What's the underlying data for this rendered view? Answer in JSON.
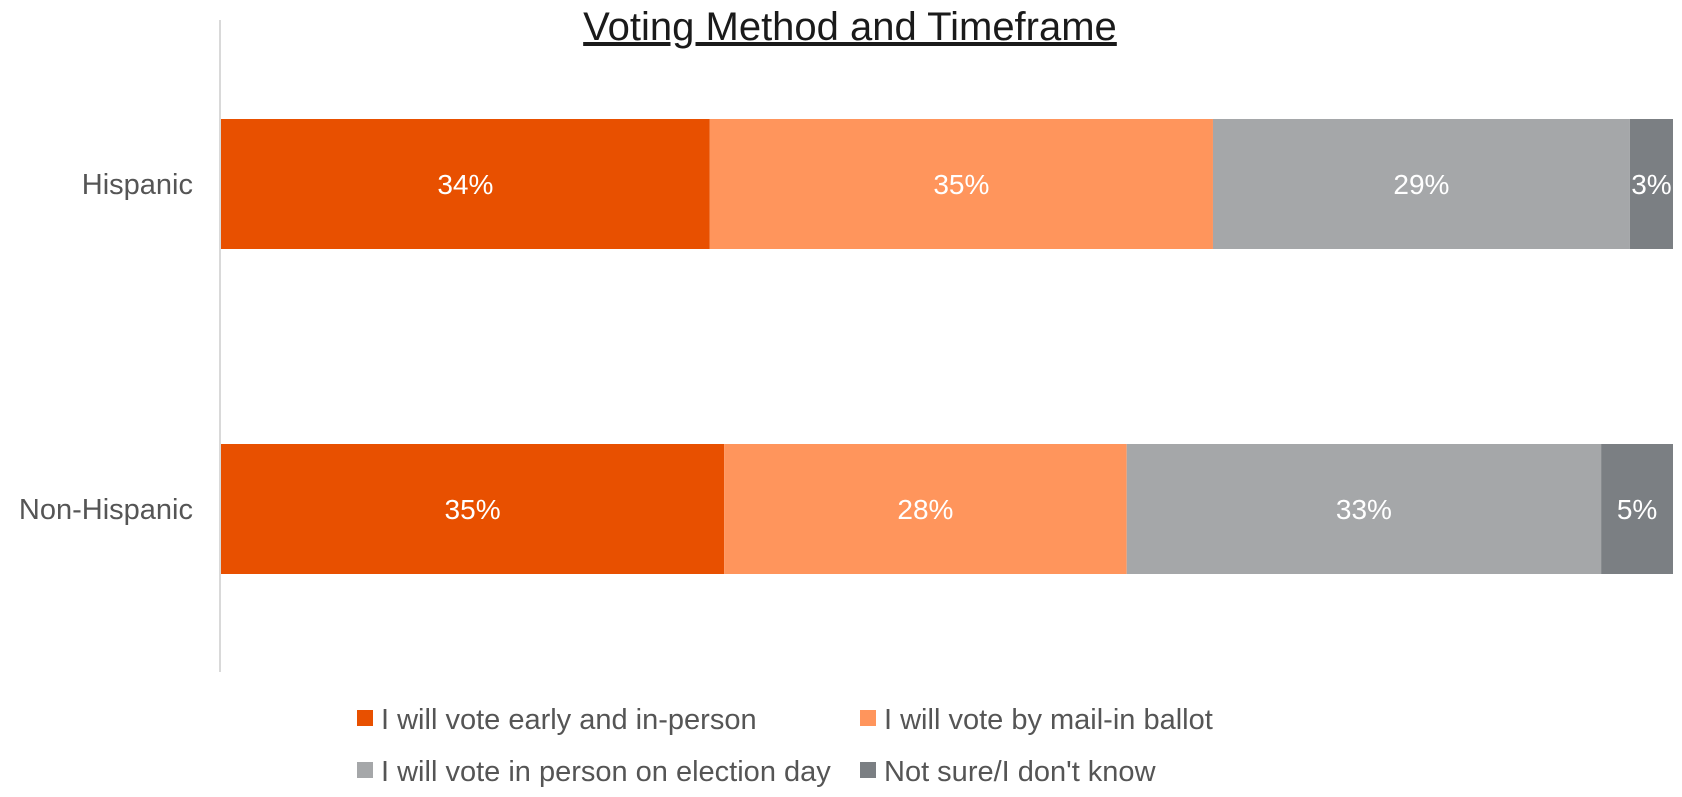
{
  "chart_data": {
    "type": "bar",
    "orientation": "horizontal",
    "stacked": true,
    "title": "Voting Method and Timeframe",
    "categories": [
      "Hispanic",
      "Non-Hispanic"
    ],
    "series": [
      {
        "name": "I will vote early and in-person",
        "values": [
          34,
          35
        ],
        "labels": [
          "34%",
          "35%"
        ],
        "color": "#E85000"
      },
      {
        "name": "I will vote by mail-in ballot",
        "values": [
          35,
          28
        ],
        "labels": [
          "35%",
          "28%"
        ],
        "color": "#FF955C"
      },
      {
        "name": "I will vote in person on election day",
        "values": [
          29,
          33
        ],
        "labels": [
          "29%",
          "33%"
        ],
        "color": "#A5A7A9"
      },
      {
        "name": "Not sure/I don't know",
        "values": [
          3,
          5
        ],
        "labels": [
          "3%",
          "5%"
        ],
        "color": "#7B7F83"
      }
    ],
    "xlim": [
      0,
      101
    ],
    "grid": false,
    "legend_position": "bottom"
  }
}
